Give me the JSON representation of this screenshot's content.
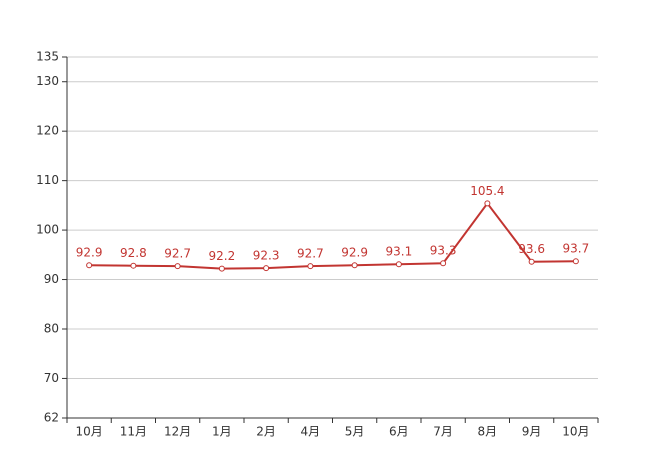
{
  "chart_data": {
    "type": "line",
    "categories": [
      "10月",
      "11月",
      "12月",
      "1月",
      "2月",
      "4月",
      "5月",
      "6月",
      "7月",
      "8月",
      "9月",
      "10月"
    ],
    "series": [
      {
        "color": "#c23531",
        "values": [
          92.9,
          92.8,
          92.7,
          92.2,
          92.3,
          92.7,
          92.9,
          93.1,
          93.3,
          105.4,
          93.6,
          93.7
        ]
      }
    ],
    "ylim": [
      62,
      135
    ],
    "yticks": [
      62,
      70,
      80,
      90,
      100,
      110,
      120,
      130,
      135
    ],
    "grid": true
  }
}
